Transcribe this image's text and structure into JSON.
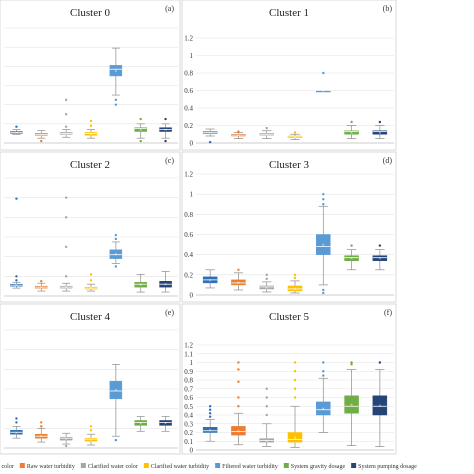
{
  "figure": {
    "legend": [
      {
        "label": "r color",
        "color": "#2e6fb5"
      },
      {
        "label": "Raw water turbidity",
        "color": "#ed7d31"
      },
      {
        "label": "Clarified water color",
        "color": "#a5a5a5"
      },
      {
        "label": "Clarified water turbidity",
        "color": "#ffc000"
      },
      {
        "label": "Filtered water turbidity",
        "color": "#5b9bd5"
      },
      {
        "label": "System gravity dosage",
        "color": "#70ad47"
      },
      {
        "label": "System pumping dosage",
        "color": "#264478"
      }
    ]
  },
  "chart_data": [
    {
      "type": "box",
      "title": "Cluster 0",
      "panel_label": "(a)",
      "ylim": [
        0,
        1.2
      ],
      "yticks": [],
      "grid": true,
      "series": [
        {
          "color": "#2e6fb5",
          "min": 0.09,
          "q1": 0.1,
          "median": 0.11,
          "q3": 0.12,
          "max": 0.14,
          "outliers": [
            0.17
          ]
        },
        {
          "color": "#ed7d31",
          "min": 0.05,
          "q1": 0.08,
          "median": 0.09,
          "q3": 0.1,
          "max": 0.13,
          "outliers": [
            0.02
          ]
        },
        {
          "color": "#a5a5a5",
          "min": 0.06,
          "q1": 0.09,
          "median": 0.1,
          "q3": 0.11,
          "max": 0.14,
          "outliers": [
            0.17,
            0.3,
            0.45
          ]
        },
        {
          "color": "#ffc000",
          "min": 0.05,
          "q1": 0.08,
          "median": 0.1,
          "q3": 0.11,
          "max": 0.14,
          "outliers": [
            0.18,
            0.23
          ]
        },
        {
          "color": "#5b9bd5",
          "min": 0.5,
          "q1": 0.7,
          "median": 0.77,
          "q3": 0.81,
          "max": 0.99,
          "outliers": [
            0.4,
            0.45
          ]
        },
        {
          "color": "#70ad47",
          "min": 0.05,
          "q1": 0.12,
          "median": 0.15,
          "q3": 0.16,
          "max": 0.2,
          "outliers": [
            0.02,
            0.25
          ]
        },
        {
          "color": "#264478",
          "min": 0.05,
          "q1": 0.12,
          "median": 0.14,
          "q3": 0.16,
          "max": 0.2,
          "outliers": [
            0.02,
            0.25
          ]
        }
      ]
    },
    {
      "type": "box",
      "title": "Cluster 1",
      "panel_label": "(b)",
      "ylim": [
        0,
        1.2
      ],
      "yticks": [
        "0",
        "0.2",
        "0.4",
        "0.6",
        "0.8",
        "1",
        "1.2"
      ],
      "grid": true,
      "series": [
        {
          "color": "#2e6fb5",
          "min": 0.08,
          "q1": 0.11,
          "median": 0.12,
          "q3": 0.13,
          "max": 0.16,
          "outliers": [
            0.01
          ]
        },
        {
          "color": "#ed7d31",
          "min": 0.05,
          "q1": 0.08,
          "median": 0.09,
          "q3": 0.1,
          "max": 0.12,
          "outliers": [
            0.13
          ]
        },
        {
          "color": "#a5a5a5",
          "min": 0.05,
          "q1": 0.09,
          "median": 0.1,
          "q3": 0.11,
          "max": 0.14,
          "outliers": [
            0.17
          ]
        },
        {
          "color": "#ffc000",
          "min": 0.04,
          "q1": 0.06,
          "median": 0.07,
          "q3": 0.08,
          "max": 0.1,
          "outliers": [
            0.12
          ]
        },
        {
          "color": "#5b9bd5",
          "min": 0.6,
          "q1": 0.6,
          "median": 0.6,
          "q3": 0.6,
          "max": 0.6,
          "outliers": [
            0.8
          ]
        },
        {
          "color": "#70ad47",
          "min": 0.05,
          "q1": 0.1,
          "median": 0.13,
          "q3": 0.14,
          "max": 0.2,
          "outliers": [
            0.24
          ]
        },
        {
          "color": "#264478",
          "min": 0.05,
          "q1": 0.1,
          "median": 0.13,
          "q3": 0.14,
          "max": 0.2,
          "outliers": [
            0.24
          ]
        }
      ]
    },
    {
      "type": "box",
      "title": "Cluster 2",
      "panel_label": "(c)",
      "ylim": [
        0,
        1.2
      ],
      "yticks": [],
      "grid": true,
      "series": [
        {
          "color": "#2e6fb5",
          "min": 0.08,
          "q1": 0.1,
          "median": 0.11,
          "q3": 0.12,
          "max": 0.14,
          "outliers": [
            0.16,
            0.2,
            0.99
          ]
        },
        {
          "color": "#ed7d31",
          "min": 0.05,
          "q1": 0.08,
          "median": 0.09,
          "q3": 0.1,
          "max": 0.13,
          "outliers": [
            0.15
          ]
        },
        {
          "color": "#a5a5a5",
          "min": 0.05,
          "q1": 0.08,
          "median": 0.09,
          "q3": 0.1,
          "max": 0.13,
          "outliers": [
            0.2,
            0.5,
            0.8,
            1.0
          ]
        },
        {
          "color": "#ffc000",
          "min": 0.05,
          "q1": 0.07,
          "median": 0.08,
          "q3": 0.09,
          "max": 0.12,
          "outliers": [
            0.16,
            0.22
          ]
        },
        {
          "color": "#5b9bd5",
          "min": 0.33,
          "q1": 0.38,
          "median": 0.42,
          "q3": 0.47,
          "max": 0.55,
          "outliers": [
            0.3,
            0.58,
            0.62
          ]
        },
        {
          "color": "#70ad47",
          "min": 0.04,
          "q1": 0.09,
          "median": 0.12,
          "q3": 0.14,
          "max": 0.22,
          "outliers": []
        },
        {
          "color": "#264478",
          "min": 0.04,
          "q1": 0.09,
          "median": 0.12,
          "q3": 0.15,
          "max": 0.25,
          "outliers": []
        }
      ]
    },
    {
      "type": "box",
      "title": "Cluster 3",
      "panel_label": "(d)",
      "ylim": [
        0,
        1.2
      ],
      "yticks": [
        "0",
        "0.2",
        "0.4",
        "0.6",
        "0.8",
        "1",
        "1.2"
      ],
      "grid": true,
      "series": [
        {
          "color": "#2e6fb5",
          "min": 0.07,
          "q1": 0.12,
          "median": 0.15,
          "q3": 0.18,
          "max": 0.25,
          "outliers": []
        },
        {
          "color": "#ed7d31",
          "min": 0.05,
          "q1": 0.1,
          "median": 0.12,
          "q3": 0.15,
          "max": 0.22,
          "outliers": [
            0.25
          ]
        },
        {
          "color": "#a5a5a5",
          "min": 0.03,
          "q1": 0.06,
          "median": 0.08,
          "q3": 0.09,
          "max": 0.13,
          "outliers": [
            0.16,
            0.2
          ]
        },
        {
          "color": "#ffc000",
          "min": 0.02,
          "q1": 0.04,
          "median": 0.06,
          "q3": 0.09,
          "max": 0.14,
          "outliers": [
            0.17,
            0.2
          ]
        },
        {
          "color": "#5b9bd5",
          "min": 0.1,
          "q1": 0.4,
          "median": 0.48,
          "q3": 0.6,
          "max": 0.88,
          "outliers": [
            0.02,
            0.05,
            0.9,
            0.95,
            1.0
          ]
        },
        {
          "color": "#70ad47",
          "min": 0.25,
          "q1": 0.34,
          "median": 0.37,
          "q3": 0.39,
          "max": 0.45,
          "outliers": [
            0.49
          ]
        },
        {
          "color": "#264478",
          "min": 0.25,
          "q1": 0.34,
          "median": 0.37,
          "q3": 0.39,
          "max": 0.45,
          "outliers": [
            0.49
          ]
        }
      ]
    },
    {
      "type": "box",
      "title": "Cluster 4",
      "panel_label": "(e)",
      "ylim": [
        0,
        1.2
      ],
      "yticks": [],
      "grid": true,
      "series": [
        {
          "color": "#2e6fb5",
          "min": 0.1,
          "q1": 0.14,
          "median": 0.16,
          "q3": 0.18,
          "max": 0.22,
          "outliers": [
            0.26,
            0.3
          ]
        },
        {
          "color": "#ed7d31",
          "min": 0.06,
          "q1": 0.1,
          "median": 0.12,
          "q3": 0.14,
          "max": 0.2,
          "outliers": [
            0.22,
            0.26
          ]
        },
        {
          "color": "#a5a5a5",
          "min": 0.04,
          "q1": 0.08,
          "median": 0.1,
          "q3": 0.11,
          "max": 0.15,
          "outliers": [
            0.02
          ]
        },
        {
          "color": "#ffc000",
          "min": 0.03,
          "q1": 0.07,
          "median": 0.09,
          "q3": 0.1,
          "max": 0.14,
          "outliers": [
            0.18,
            0.22
          ]
        },
        {
          "color": "#5b9bd5",
          "min": 0.12,
          "q1": 0.5,
          "median": 0.58,
          "q3": 0.68,
          "max": 0.85,
          "outliers": [
            0.08
          ]
        },
        {
          "color": "#70ad47",
          "min": 0.17,
          "q1": 0.23,
          "median": 0.26,
          "q3": 0.28,
          "max": 0.32,
          "outliers": []
        },
        {
          "color": "#264478",
          "min": 0.17,
          "q1": 0.23,
          "median": 0.26,
          "q3": 0.28,
          "max": 0.32,
          "outliers": []
        }
      ]
    },
    {
      "type": "box",
      "title": "Cluster 5",
      "panel_label": "(f)",
      "ylim": [
        0,
        1.2
      ],
      "yticks": [
        "0",
        "0.1",
        "0.2",
        "0.3",
        "0.4",
        "0.5",
        "0.6",
        "0.7",
        "0.8",
        "0.9",
        "1",
        "1.1",
        "1.2"
      ],
      "grid": true,
      "series": [
        {
          "color": "#2e6fb5",
          "min": 0.1,
          "q1": 0.2,
          "median": 0.22,
          "q3": 0.26,
          "max": 0.35,
          "outliers": [
            0.38,
            0.42,
            0.46,
            0.5
          ]
        },
        {
          "color": "#ed7d31",
          "min": 0.06,
          "q1": 0.17,
          "median": 0.21,
          "q3": 0.27,
          "max": 0.42,
          "outliers": [
            0.5,
            0.6,
            0.78,
            0.92,
            1.0
          ]
        },
        {
          "color": "#a5a5a5",
          "min": 0.04,
          "q1": 0.09,
          "median": 0.11,
          "q3": 0.13,
          "max": 0.3,
          "outliers": [
            0.4,
            0.5,
            0.6,
            0.7
          ]
        },
        {
          "color": "#ffc000",
          "min": 0.03,
          "q1": 0.09,
          "median": 0.12,
          "q3": 0.2,
          "max": 0.5,
          "outliers": [
            0.6,
            0.7,
            0.8,
            0.9,
            1.0
          ]
        },
        {
          "color": "#5b9bd5",
          "min": 0.2,
          "q1": 0.4,
          "median": 0.46,
          "q3": 0.55,
          "max": 0.82,
          "outliers": [
            0.85,
            0.9,
            1.0
          ]
        },
        {
          "color": "#70ad47",
          "min": 0.05,
          "q1": 0.42,
          "median": 0.5,
          "q3": 0.62,
          "max": 0.92,
          "outliers": [
            0.98,
            1.0
          ]
        },
        {
          "color": "#264478",
          "min": 0.04,
          "q1": 0.4,
          "median": 0.5,
          "q3": 0.62,
          "max": 0.92,
          "outliers": [
            1.0
          ]
        }
      ]
    }
  ]
}
